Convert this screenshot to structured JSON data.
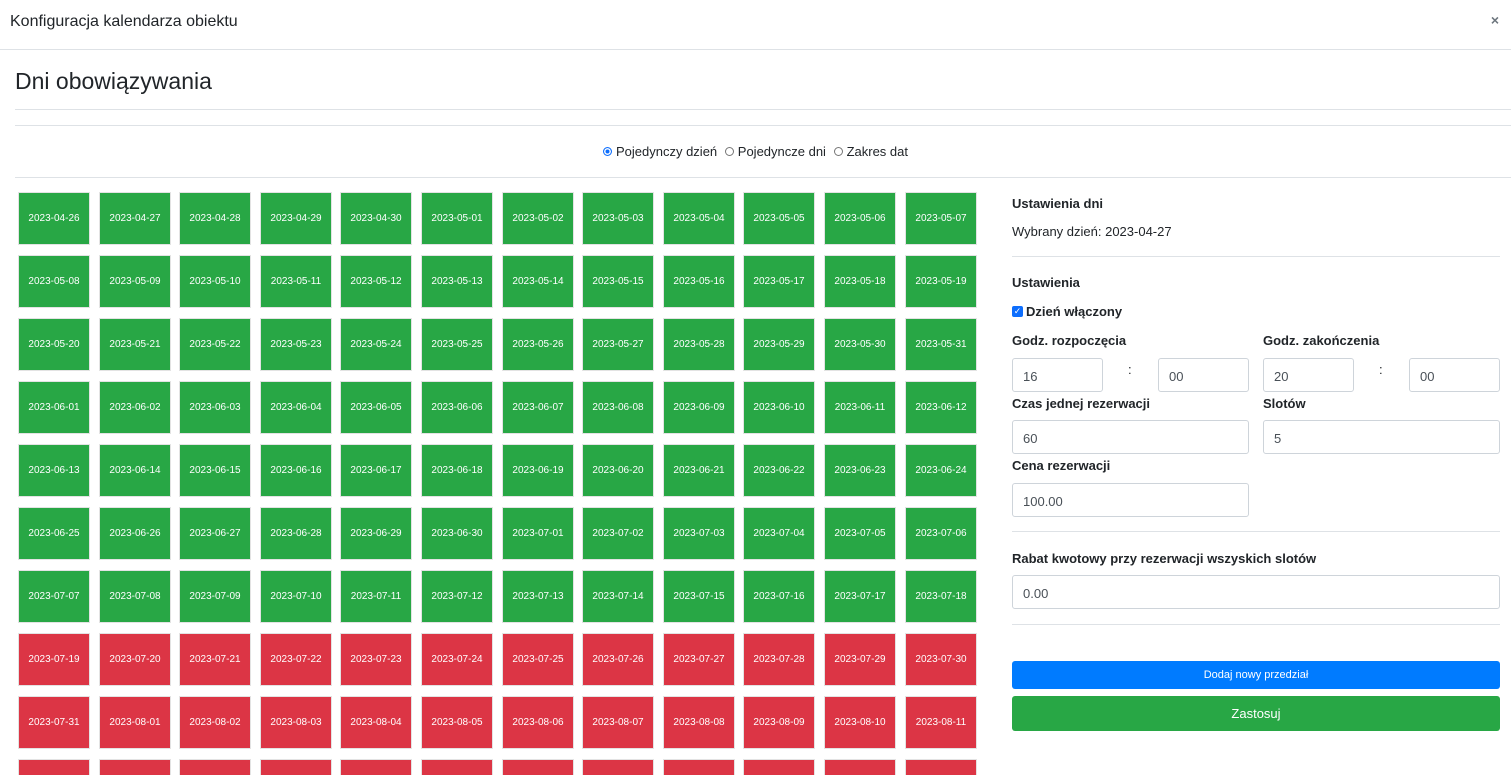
{
  "modal": {
    "title": "Konfiguracja kalendarza obiektu",
    "close_icon": "×"
  },
  "section": {
    "title": "Dni obowiązywania"
  },
  "modes": {
    "options": [
      "Pojedynczy dzień",
      "Pojedyncze dni",
      "Zakres dat"
    ],
    "selected": "Pojedynczy dzień"
  },
  "colors": {
    "enabled": "#28a745",
    "disabled": "#dc3545",
    "primary": "#007bff"
  },
  "calendar": {
    "days": [
      {
        "date": "2023-04-26",
        "enabled": true
      },
      {
        "date": "2023-04-27",
        "enabled": true
      },
      {
        "date": "2023-04-28",
        "enabled": true
      },
      {
        "date": "2023-04-29",
        "enabled": true
      },
      {
        "date": "2023-04-30",
        "enabled": true
      },
      {
        "date": "2023-05-01",
        "enabled": true
      },
      {
        "date": "2023-05-02",
        "enabled": true
      },
      {
        "date": "2023-05-03",
        "enabled": true
      },
      {
        "date": "2023-05-04",
        "enabled": true
      },
      {
        "date": "2023-05-05",
        "enabled": true
      },
      {
        "date": "2023-05-06",
        "enabled": true
      },
      {
        "date": "2023-05-07",
        "enabled": true
      },
      {
        "date": "2023-05-08",
        "enabled": true
      },
      {
        "date": "2023-05-09",
        "enabled": true
      },
      {
        "date": "2023-05-10",
        "enabled": true
      },
      {
        "date": "2023-05-11",
        "enabled": true
      },
      {
        "date": "2023-05-12",
        "enabled": true
      },
      {
        "date": "2023-05-13",
        "enabled": true
      },
      {
        "date": "2023-05-14",
        "enabled": true
      },
      {
        "date": "2023-05-15",
        "enabled": true
      },
      {
        "date": "2023-05-16",
        "enabled": true
      },
      {
        "date": "2023-05-17",
        "enabled": true
      },
      {
        "date": "2023-05-18",
        "enabled": true
      },
      {
        "date": "2023-05-19",
        "enabled": true
      },
      {
        "date": "2023-05-20",
        "enabled": true
      },
      {
        "date": "2023-05-21",
        "enabled": true
      },
      {
        "date": "2023-05-22",
        "enabled": true
      },
      {
        "date": "2023-05-23",
        "enabled": true
      },
      {
        "date": "2023-05-24",
        "enabled": true
      },
      {
        "date": "2023-05-25",
        "enabled": true
      },
      {
        "date": "2023-05-26",
        "enabled": true
      },
      {
        "date": "2023-05-27",
        "enabled": true
      },
      {
        "date": "2023-05-28",
        "enabled": true
      },
      {
        "date": "2023-05-29",
        "enabled": true
      },
      {
        "date": "2023-05-30",
        "enabled": true
      },
      {
        "date": "2023-05-31",
        "enabled": true
      },
      {
        "date": "2023-06-01",
        "enabled": true
      },
      {
        "date": "2023-06-02",
        "enabled": true
      },
      {
        "date": "2023-06-03",
        "enabled": true
      },
      {
        "date": "2023-06-04",
        "enabled": true
      },
      {
        "date": "2023-06-05",
        "enabled": true
      },
      {
        "date": "2023-06-06",
        "enabled": true
      },
      {
        "date": "2023-06-07",
        "enabled": true
      },
      {
        "date": "2023-06-08",
        "enabled": true
      },
      {
        "date": "2023-06-09",
        "enabled": true
      },
      {
        "date": "2023-06-10",
        "enabled": true
      },
      {
        "date": "2023-06-11",
        "enabled": true
      },
      {
        "date": "2023-06-12",
        "enabled": true
      },
      {
        "date": "2023-06-13",
        "enabled": true
      },
      {
        "date": "2023-06-14",
        "enabled": true
      },
      {
        "date": "2023-06-15",
        "enabled": true
      },
      {
        "date": "2023-06-16",
        "enabled": true
      },
      {
        "date": "2023-06-17",
        "enabled": true
      },
      {
        "date": "2023-06-18",
        "enabled": true
      },
      {
        "date": "2023-06-19",
        "enabled": true
      },
      {
        "date": "2023-06-20",
        "enabled": true
      },
      {
        "date": "2023-06-21",
        "enabled": true
      },
      {
        "date": "2023-06-22",
        "enabled": true
      },
      {
        "date": "2023-06-23",
        "enabled": true
      },
      {
        "date": "2023-06-24",
        "enabled": true
      },
      {
        "date": "2023-06-25",
        "enabled": true
      },
      {
        "date": "2023-06-26",
        "enabled": true
      },
      {
        "date": "2023-06-27",
        "enabled": true
      },
      {
        "date": "2023-06-28",
        "enabled": true
      },
      {
        "date": "2023-06-29",
        "enabled": true
      },
      {
        "date": "2023-06-30",
        "enabled": true
      },
      {
        "date": "2023-07-01",
        "enabled": true
      },
      {
        "date": "2023-07-02",
        "enabled": true
      },
      {
        "date": "2023-07-03",
        "enabled": true
      },
      {
        "date": "2023-07-04",
        "enabled": true
      },
      {
        "date": "2023-07-05",
        "enabled": true
      },
      {
        "date": "2023-07-06",
        "enabled": true
      },
      {
        "date": "2023-07-07",
        "enabled": true
      },
      {
        "date": "2023-07-08",
        "enabled": true
      },
      {
        "date": "2023-07-09",
        "enabled": true
      },
      {
        "date": "2023-07-10",
        "enabled": true
      },
      {
        "date": "2023-07-11",
        "enabled": true
      },
      {
        "date": "2023-07-12",
        "enabled": true
      },
      {
        "date": "2023-07-13",
        "enabled": true
      },
      {
        "date": "2023-07-14",
        "enabled": true
      },
      {
        "date": "2023-07-15",
        "enabled": true
      },
      {
        "date": "2023-07-16",
        "enabled": true
      },
      {
        "date": "2023-07-17",
        "enabled": true
      },
      {
        "date": "2023-07-18",
        "enabled": true
      },
      {
        "date": "2023-07-19",
        "enabled": false
      },
      {
        "date": "2023-07-20",
        "enabled": false
      },
      {
        "date": "2023-07-21",
        "enabled": false
      },
      {
        "date": "2023-07-22",
        "enabled": false
      },
      {
        "date": "2023-07-23",
        "enabled": false
      },
      {
        "date": "2023-07-24",
        "enabled": false
      },
      {
        "date": "2023-07-25",
        "enabled": false
      },
      {
        "date": "2023-07-26",
        "enabled": false
      },
      {
        "date": "2023-07-27",
        "enabled": false
      },
      {
        "date": "2023-07-28",
        "enabled": false
      },
      {
        "date": "2023-07-29",
        "enabled": false
      },
      {
        "date": "2023-07-30",
        "enabled": false
      },
      {
        "date": "2023-07-31",
        "enabled": false
      },
      {
        "date": "2023-08-01",
        "enabled": false
      },
      {
        "date": "2023-08-02",
        "enabled": false
      },
      {
        "date": "2023-08-03",
        "enabled": false
      },
      {
        "date": "2023-08-04",
        "enabled": false
      },
      {
        "date": "2023-08-05",
        "enabled": false
      },
      {
        "date": "2023-08-06",
        "enabled": false
      },
      {
        "date": "2023-08-07",
        "enabled": false
      },
      {
        "date": "2023-08-08",
        "enabled": false
      },
      {
        "date": "2023-08-09",
        "enabled": false
      },
      {
        "date": "2023-08-10",
        "enabled": false
      },
      {
        "date": "2023-08-11",
        "enabled": false
      },
      {
        "date": "",
        "enabled": false
      },
      {
        "date": "",
        "enabled": false
      },
      {
        "date": "",
        "enabled": false
      },
      {
        "date": "",
        "enabled": false
      },
      {
        "date": "",
        "enabled": false
      },
      {
        "date": "",
        "enabled": false
      },
      {
        "date": "",
        "enabled": false
      },
      {
        "date": "",
        "enabled": false
      },
      {
        "date": "",
        "enabled": false
      },
      {
        "date": "",
        "enabled": false
      },
      {
        "date": "",
        "enabled": false
      },
      {
        "date": "",
        "enabled": false
      }
    ]
  },
  "settings": {
    "days_header": "Ustawienia dni",
    "selected_day": "Wybrany dzień: 2023-04-27",
    "header": "Ustawienia",
    "day_enabled_label": "Dzień włączony",
    "day_enabled": true,
    "start_label": "Godz. rozpoczęcia",
    "start_hour": "16",
    "start_minute": "00",
    "end_label": "Godz. zakończenia",
    "end_hour": "20",
    "end_minute": "00",
    "colon": ":",
    "duration_label": "Czas jednej rezerwacji",
    "duration": "60",
    "slots_label": "Slotów",
    "slots": "5",
    "price_label": "Cena rezerwacji",
    "price": "100.00",
    "discount_label": "Rabat kwotowy przy rezerwacji wszyskich slotów",
    "discount": "0.00"
  },
  "actions": {
    "add_interval": "Dodaj nowy przedział",
    "apply": "Zastosuj"
  }
}
